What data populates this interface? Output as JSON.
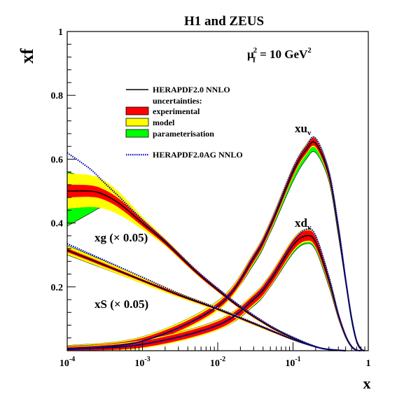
{
  "chart_data": {
    "type": "line",
    "title": "H1 and ZEUS",
    "scale_label": "μ",
    "scale_sub": "f",
    "scale_sup": "2",
    "scale_value": " = 10 GeV",
    "scale_unit_sup": "2",
    "xlabel": "x",
    "ylabel": "xf",
    "x_scale": "log",
    "xlim": [
      0.0001,
      1
    ],
    "ylim": [
      0,
      1
    ],
    "grid": false,
    "legend_position": "upper-left",
    "x_ticks": [
      {
        "base": "10",
        "exp": "-4",
        "value": 0.0001
      },
      {
        "base": "10",
        "exp": "-3",
        "value": 0.001
      },
      {
        "base": "10",
        "exp": "-2",
        "value": 0.01
      },
      {
        "base": "10",
        "exp": "-1",
        "value": 0.1
      },
      {
        "base": "1",
        "exp": "",
        "value": 1
      }
    ],
    "y_ticks": [
      {
        "label": "0.2",
        "value": 0.2
      },
      {
        "label": "0.4",
        "value": 0.4
      },
      {
        "label": "0.6",
        "value": 0.6
      },
      {
        "label": "0.8",
        "value": 0.8
      },
      {
        "label": "1",
        "value": 1
      }
    ],
    "legend": {
      "line_label": "HERAPDF2.0 NNLO",
      "uncertainties_label": "uncertainties:",
      "bands": [
        {
          "label": "experimental",
          "color": "#ff0000"
        },
        {
          "label": "model",
          "color": "#ffff00"
        },
        {
          "label": "parameterisation",
          "color": "#00ff00"
        }
      ],
      "dotted_label": "HERAPDF2.0AG NNLO",
      "dotted_color": "#0000cc"
    },
    "curve_labels": {
      "xuv": {
        "main": "xu",
        "sub": "v"
      },
      "xdv": {
        "main": "xd",
        "sub": "v"
      },
      "xg": "xg (× 0.05)",
      "xS": "xS (× 0.05)"
    },
    "series": [
      {
        "name": "xu_v",
        "x": [
          0.0001,
          0.001,
          0.01,
          0.03,
          0.05,
          0.1,
          0.15,
          0.2,
          0.3,
          0.4,
          0.5,
          0.6,
          0.7,
          0.8,
          0.9
        ],
        "central": [
          0.006,
          0.03,
          0.14,
          0.29,
          0.39,
          0.56,
          0.63,
          0.65,
          0.55,
          0.38,
          0.22,
          0.1,
          0.03,
          0.005,
          0.0
        ],
        "exp": [
          0.008,
          0.01,
          0.01,
          0.012,
          0.012,
          0.012,
          0.012,
          0.012,
          0.012,
          0.012,
          0.01,
          0.008,
          0.005,
          0.003,
          0.0
        ],
        "model": [
          0.01,
          0.014,
          0.016,
          0.016,
          0.016,
          0.016,
          0.016,
          0.016,
          0.016,
          0.014,
          0.012,
          0.01,
          0.006,
          0.003,
          0.0
        ],
        "par_low": [
          0.006,
          0.024,
          0.13,
          0.27,
          0.37,
          0.53,
          0.6,
          0.62,
          0.53,
          0.36,
          0.21,
          0.09,
          0.025,
          0.003,
          0.0
        ],
        "ag": [
          0.006,
          0.03,
          0.14,
          0.295,
          0.395,
          0.57,
          0.64,
          0.665,
          0.56,
          0.39,
          0.225,
          0.1,
          0.03,
          0.005,
          0.0
        ]
      },
      {
        "name": "xd_v",
        "x": [
          0.0001,
          0.001,
          0.01,
          0.03,
          0.05,
          0.1,
          0.15,
          0.2,
          0.3,
          0.4,
          0.5,
          0.6,
          0.7,
          0.8
        ],
        "central": [
          0.004,
          0.02,
          0.08,
          0.16,
          0.22,
          0.33,
          0.36,
          0.34,
          0.22,
          0.11,
          0.045,
          0.013,
          0.002,
          0.0
        ],
        "exp": [
          0.006,
          0.01,
          0.012,
          0.014,
          0.015,
          0.016,
          0.016,
          0.016,
          0.012,
          0.008,
          0.005,
          0.003,
          0.001,
          0.0
        ],
        "model": [
          0.008,
          0.013,
          0.016,
          0.018,
          0.019,
          0.02,
          0.02,
          0.02,
          0.015,
          0.01,
          0.006,
          0.003,
          0.001,
          0.0
        ],
        "par_low": [
          0.003,
          0.012,
          0.065,
          0.14,
          0.2,
          0.305,
          0.335,
          0.315,
          0.2,
          0.1,
          0.04,
          0.01,
          0.001,
          0.0
        ],
        "ag": [
          0.004,
          0.02,
          0.08,
          0.165,
          0.225,
          0.34,
          0.38,
          0.36,
          0.23,
          0.115,
          0.047,
          0.013,
          0.002,
          0.0
        ]
      },
      {
        "name": "xg (× 0.05)",
        "x": [
          0.0001,
          0.0002,
          0.0003,
          0.0005,
          0.001,
          0.002,
          0.005,
          0.01,
          0.02,
          0.05,
          0.1,
          0.2,
          0.3,
          0.5
        ],
        "central": [
          0.5,
          0.5,
          0.49,
          0.46,
          0.4,
          0.34,
          0.25,
          0.19,
          0.135,
          0.075,
          0.04,
          0.012,
          0.004,
          0.0
        ],
        "exp": [
          0.02,
          0.018,
          0.016,
          0.014,
          0.01,
          0.008,
          0.006,
          0.005,
          0.004,
          0.003,
          0.002,
          0.001,
          0.001,
          0.0
        ],
        "model": [
          0.055,
          0.05,
          0.045,
          0.035,
          0.02,
          0.012,
          0.008,
          0.006,
          0.005,
          0.004,
          0.003,
          0.002,
          0.001,
          0.0
        ],
        "par_low": [
          0.39,
          0.43,
          0.45,
          0.44,
          0.39,
          0.335,
          0.245,
          0.186,
          0.131,
          0.072,
          0.038,
          0.011,
          0.003,
          0.0
        ],
        "par_high": [
          0.56,
          0.54,
          0.525,
          0.49,
          0.415,
          0.35,
          0.257,
          0.196,
          0.14,
          0.079,
          0.043,
          0.014,
          0.005,
          0.0
        ],
        "ag": [
          0.62,
          0.57,
          0.53,
          0.48,
          0.41,
          0.345,
          0.255,
          0.195,
          0.14,
          0.078,
          0.042,
          0.013,
          0.004,
          0.0
        ]
      },
      {
        "name": "xS (× 0.05)",
        "x": [
          0.0001,
          0.0003,
          0.001,
          0.003,
          0.01,
          0.03,
          0.1,
          0.2,
          0.3,
          0.5
        ],
        "central": [
          0.315,
          0.27,
          0.22,
          0.175,
          0.13,
          0.085,
          0.035,
          0.012,
          0.004,
          0.0
        ],
        "exp": [
          0.006,
          0.005,
          0.004,
          0.004,
          0.003,
          0.003,
          0.002,
          0.001,
          0.001,
          0.0
        ],
        "model": [
          0.014,
          0.012,
          0.01,
          0.008,
          0.006,
          0.005,
          0.003,
          0.002,
          0.001,
          0.0
        ],
        "par_low": [
          0.3,
          0.258,
          0.211,
          0.169,
          0.125,
          0.081,
          0.033,
          0.011,
          0.003,
          0.0
        ],
        "par_high": [
          0.33,
          0.283,
          0.228,
          0.181,
          0.134,
          0.088,
          0.037,
          0.013,
          0.005,
          0.0
        ],
        "ag": [
          0.335,
          0.285,
          0.23,
          0.18,
          0.133,
          0.087,
          0.036,
          0.012,
          0.004,
          0.0
        ]
      }
    ]
  }
}
